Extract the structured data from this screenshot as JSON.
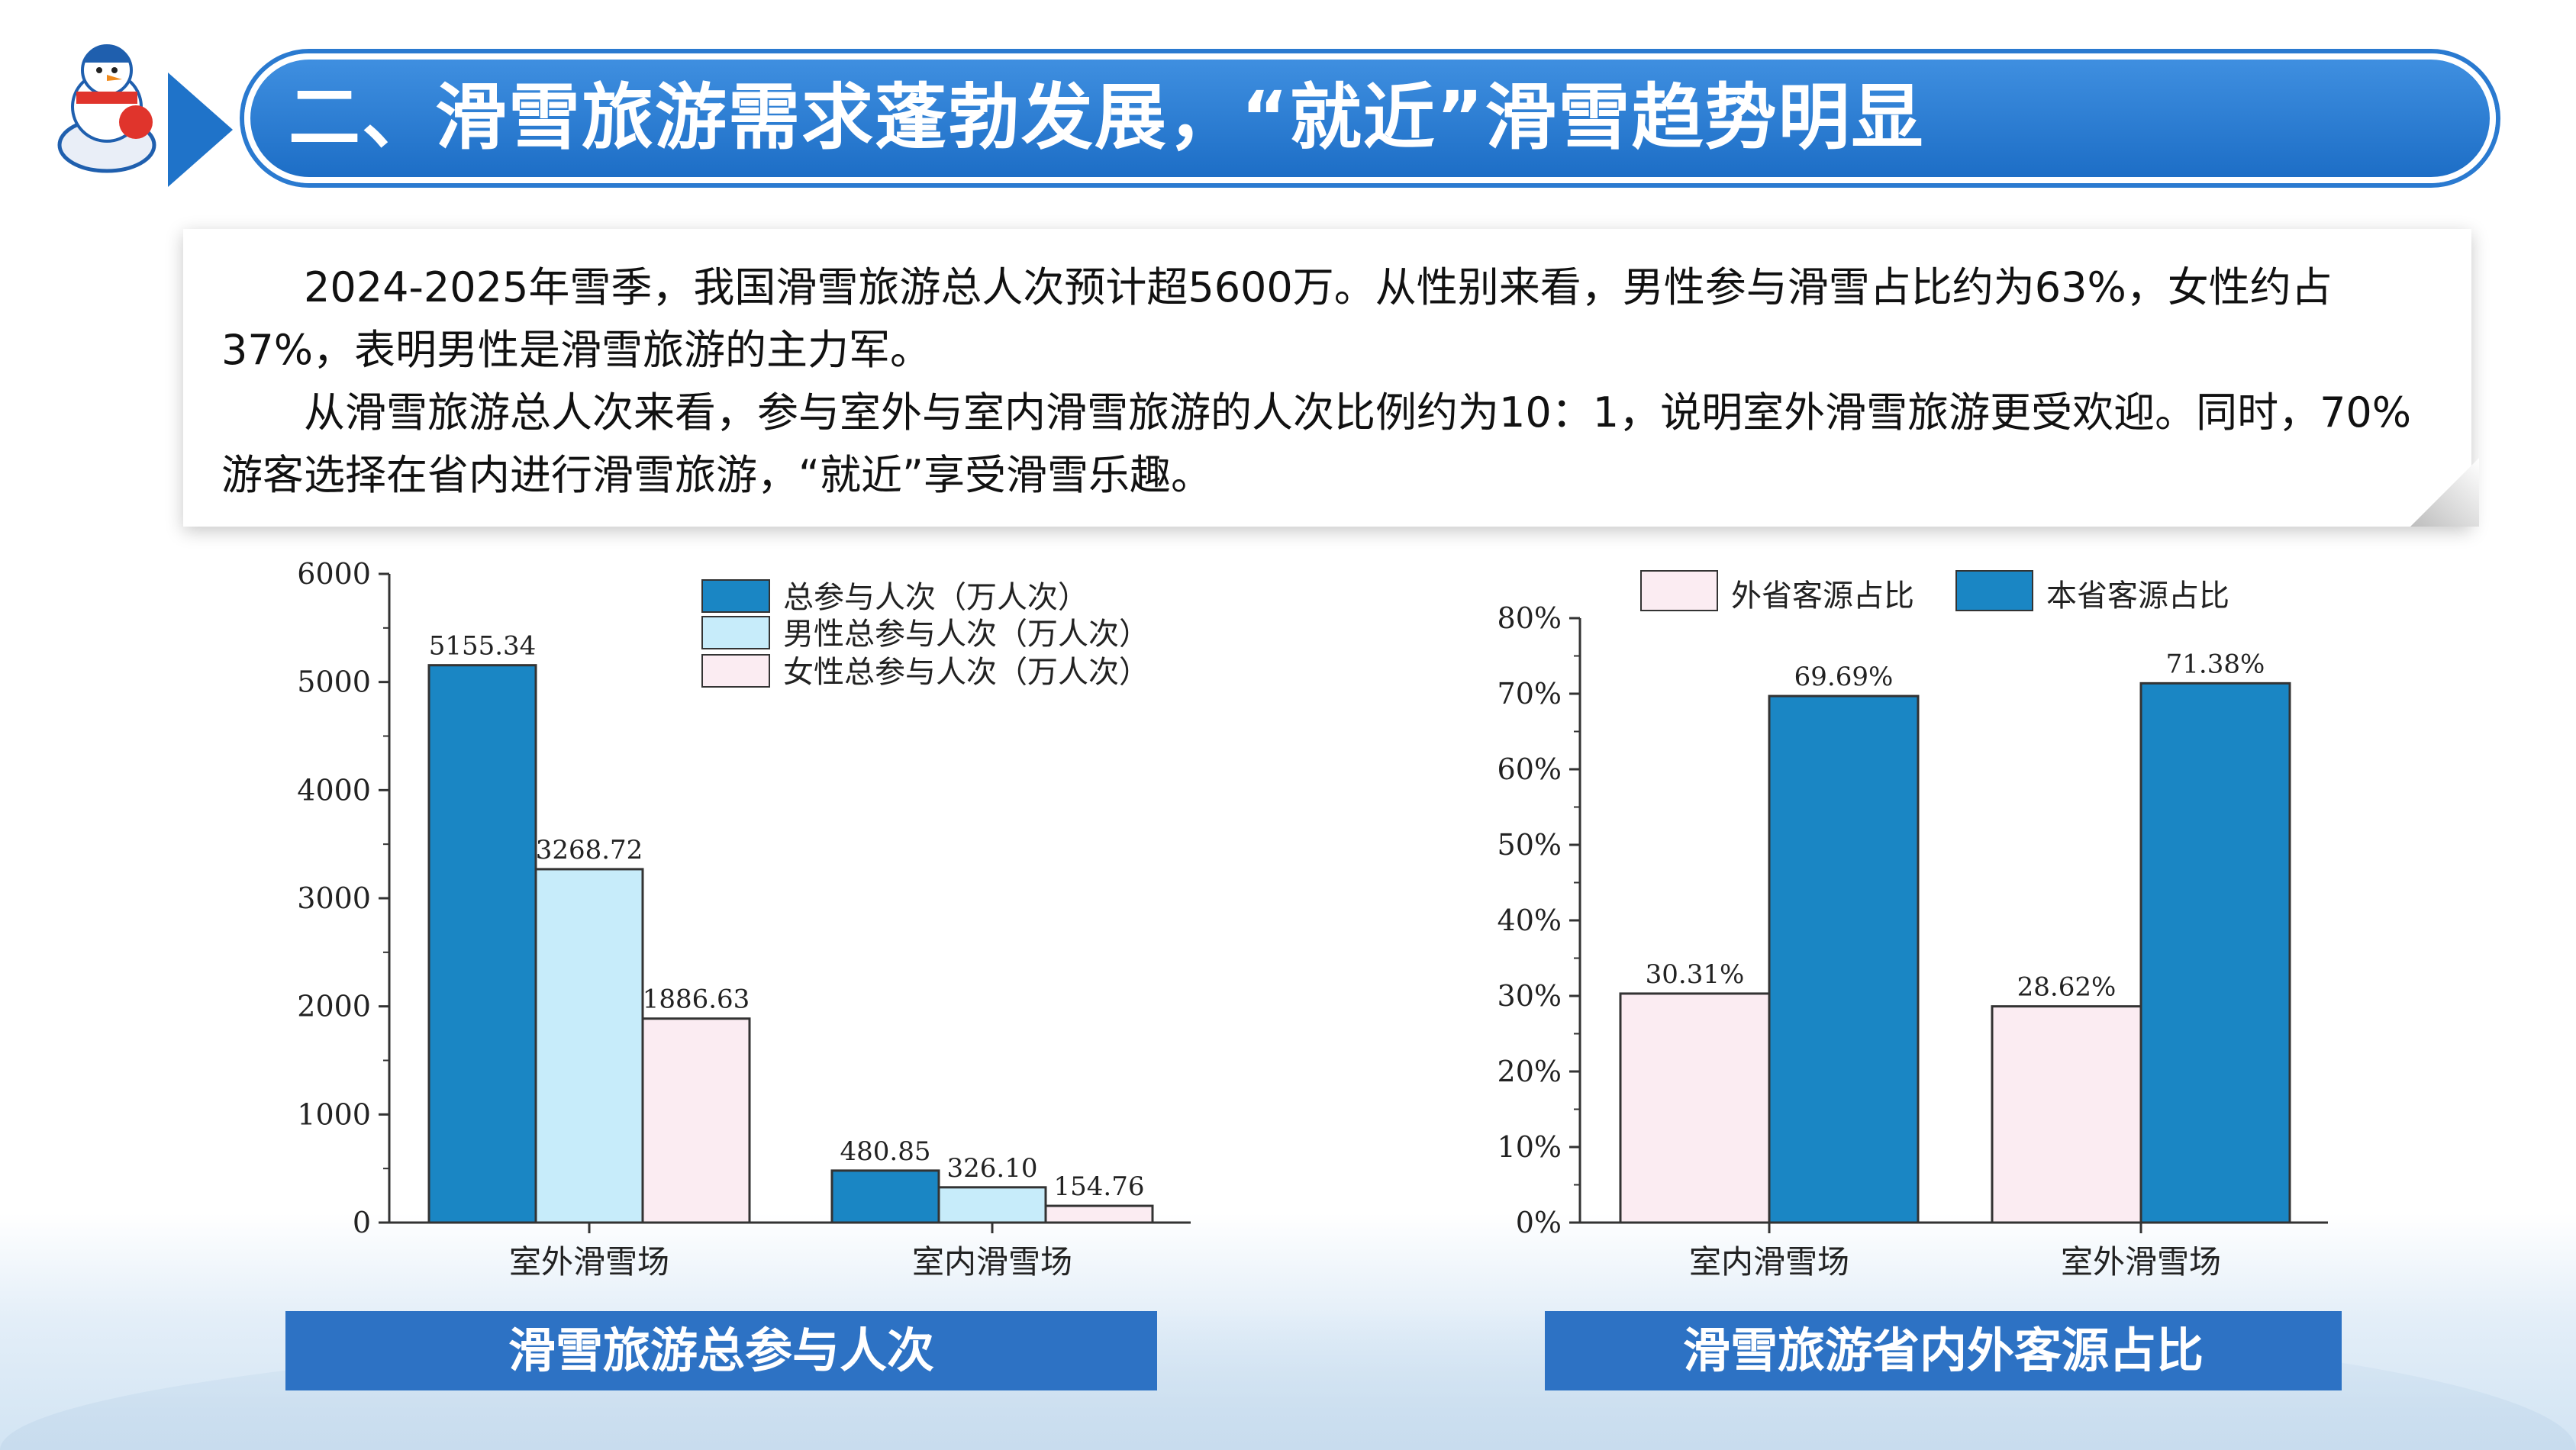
{
  "header": {
    "title": "二、滑雪旅游需求蓬勃发展，“就近”滑雪趋势明显"
  },
  "intro": {
    "para1": "2024-2025年雪季，我国滑雪旅游总人次预计超5600万。从性别来看，男性参与滑雪占比约为63%，女性约占37%，表明男性是滑雪旅游的主力军。",
    "para2": "从滑雪旅游总人次来看，参与室外与室内滑雪旅游的人次比例约为10：1，说明室外滑雪旅游更受欢迎。同时，70%游客选择在省内进行滑雪旅游，“就近”享受滑雪乐趣。"
  },
  "captions": {
    "left": "滑雪旅游总参与人次",
    "right": "滑雪旅游省内外客源占比"
  },
  "colors": {
    "primary_blue": "#1a86c4",
    "light_blue": "#c7ecfa",
    "pink": "#fbecf2",
    "header_blue": "#1f73c9"
  },
  "chart_data": [
    {
      "type": "bar",
      "categories": [
        "室外滑雪场",
        "室内滑雪场"
      ],
      "series": [
        {
          "name": "总参与人次（万人次）",
          "values": [
            5155.34,
            480.85
          ],
          "labels": [
            "5155.34",
            "480.85"
          ],
          "color": "#1a86c4"
        },
        {
          "name": "男性总参与人次（万人次）",
          "values": [
            3268.72,
            326.1
          ],
          "labels": [
            "3268.72",
            "326.10"
          ],
          "color": "#c7ecfa"
        },
        {
          "name": "女性总参与人次（万人次）",
          "values": [
            1886.63,
            154.76
          ],
          "labels": [
            "1886.63",
            "154.76"
          ],
          "color": "#fbecf2"
        }
      ],
      "yticks": [
        "0",
        "1000",
        "2000",
        "3000",
        "4000",
        "5000",
        "6000"
      ],
      "ylim": [
        0,
        6000
      ],
      "legend": "top-right"
    },
    {
      "type": "bar",
      "categories": [
        "室内滑雪场",
        "室外滑雪场"
      ],
      "series": [
        {
          "name": "外省客源占比",
          "values": [
            30.31,
            28.62
          ],
          "labels": [
            "30.31%",
            "28.62%"
          ],
          "color": "#fbecf2"
        },
        {
          "name": "本省客源占比",
          "values": [
            69.69,
            71.38
          ],
          "labels": [
            "69.69%",
            "71.38%"
          ],
          "color": "#1a86c4"
        }
      ],
      "yticks": [
        "0%",
        "10%",
        "20%",
        "30%",
        "40%",
        "50%",
        "60%",
        "70%",
        "80%"
      ],
      "ylim": [
        0,
        80
      ],
      "legend": "top"
    }
  ]
}
